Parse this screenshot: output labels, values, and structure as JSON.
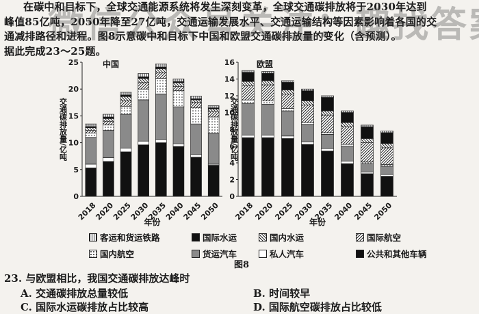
{
  "watermark": "微信公众号关注：趣找答案",
  "paragraph": [
    "在碳中和目标下，全球交通能源系统将发生深刻变革，全球交通碳排放将于2030年达到",
    "峰值85亿吨，2050年降至27亿吨，交通运输发展水平、交通运输结构等因素影响着各国的交",
    "通减排路径和进程。图8示意碳中和目标下中国和欧盟交通碳排放量的变化（含预测）。",
    "据此完成23～25题。"
  ],
  "figure_caption": "图8",
  "legend": {
    "items": [
      {
        "label": "客运和货运铁路",
        "pattern": "stripes-v"
      },
      {
        "label": "国际水运",
        "pattern": "black"
      },
      {
        "label": "国内水运",
        "pattern": "hatch-back"
      },
      {
        "label": "国际航空",
        "pattern": "hatch-fwd"
      },
      {
        "label": "国内航空",
        "pattern": "dots"
      },
      {
        "label": "货运汽车",
        "pattern": "gray"
      },
      {
        "label": "私人汽车",
        "pattern": "white"
      },
      {
        "label": "公共和其他车辆",
        "pattern": "black"
      }
    ]
  },
  "question": {
    "stem": "23. 与欧盟相比，我国交通碳排放达峰时",
    "options": [
      {
        "label": "A. 交通碳排放总量较低"
      },
      {
        "label": "B. 时间较早"
      },
      {
        "label": "C. 国际水运碳排放占比较高"
      },
      {
        "label": "D. 国际航空碳排放占比较低"
      }
    ]
  },
  "chart_data": [
    {
      "type": "bar",
      "stacked": true,
      "title": "中国",
      "xlabel": "年份",
      "ylabel": "交通碳排放量/亿吨",
      "categories": [
        "2018",
        "2020",
        "2025",
        "2030",
        "2035",
        "2040",
        "2045",
        "2050"
      ],
      "ylim": [
        0,
        25
      ],
      "yticks": [
        0,
        5,
        10,
        15,
        20,
        25
      ],
      "grid": false,
      "series": [
        {
          "name": "公共和其他车辆",
          "values": [
            5.3,
            6.5,
            8.3,
            9.6,
            10.0,
            9.3,
            7.3,
            5.8
          ]
        },
        {
          "name": "私人汽车",
          "values": [
            0.7,
            0.7,
            0.7,
            0.7,
            0.6,
            0.5,
            0.5,
            0.2
          ]
        },
        {
          "name": "货运汽车",
          "values": [
            5.0,
            5.1,
            6.3,
            7.7,
            8.5,
            6.9,
            5.7,
            5.8
          ]
        },
        {
          "name": "国内航空",
          "values": [
            0.8,
            1.0,
            1.5,
            2.0,
            2.9,
            3.0,
            3.0,
            3.0
          ]
        },
        {
          "name": "国际航空",
          "values": [
            0.5,
            0.7,
            1.0,
            1.2,
            1.0,
            0.8,
            1.0,
            1.0
          ]
        },
        {
          "name": "国内水运",
          "values": [
            0.5,
            0.5,
            0.8,
            0.8,
            0.8,
            0.7,
            0.5,
            0.5
          ]
        },
        {
          "name": "国际水运",
          "values": [
            0.2,
            0.3,
            0.3,
            0.3,
            0.3,
            0.2,
            0.2,
            0.2
          ]
        },
        {
          "name": "客运和货运铁路",
          "values": [
            0.5,
            0.5,
            0.5,
            0.6,
            0.6,
            0.5,
            0.5,
            0.4
          ]
        }
      ]
    },
    {
      "type": "bar",
      "stacked": true,
      "title": "欧盟",
      "xlabel": "年份",
      "ylabel": "交通碳排放量/亿吨",
      "categories": [
        "2018",
        "2020",
        "2025",
        "2030",
        "2035",
        "2040",
        "2045",
        "2050"
      ],
      "ylim": [
        0,
        16
      ],
      "yticks": [
        0,
        2,
        4,
        6,
        8,
        10,
        12,
        14,
        16
      ],
      "grid": false,
      "series": [
        {
          "name": "公共和其他车辆",
          "values": [
            7.0,
            7.0,
            6.9,
            6.2,
            5.4,
            3.9,
            2.7,
            2.4
          ]
        },
        {
          "name": "私人汽车",
          "values": [
            0.3,
            0.3,
            0.3,
            0.3,
            0.3,
            0.3,
            0.2,
            0.2
          ]
        },
        {
          "name": "货运汽车",
          "values": [
            3.8,
            3.7,
            3.0,
            2.1,
            1.7,
            1.8,
            1.0,
            1.0
          ]
        },
        {
          "name": "国内航空",
          "values": [
            0.4,
            0.4,
            0.3,
            0.2,
            0.2,
            0.2,
            0.2,
            0.2
          ]
        },
        {
          "name": "国际航空",
          "values": [
            1.7,
            1.9,
            1.7,
            2.1,
            2.1,
            2.1,
            2.3,
            2.0
          ]
        },
        {
          "name": "国内水运",
          "values": [
            0.5,
            0.5,
            0.5,
            0.5,
            0.5,
            0.5,
            0.5,
            0.5
          ]
        },
        {
          "name": "国际水运",
          "values": [
            1.1,
            0.9,
            0.9,
            1.2,
            1.6,
            1.2,
            1.4,
            1.3
          ]
        },
        {
          "name": "客运和货运铁路",
          "values": [
            0.2,
            0.2,
            0.2,
            0.2,
            0.2,
            0.2,
            0.2,
            0.2
          ]
        }
      ]
    }
  ]
}
